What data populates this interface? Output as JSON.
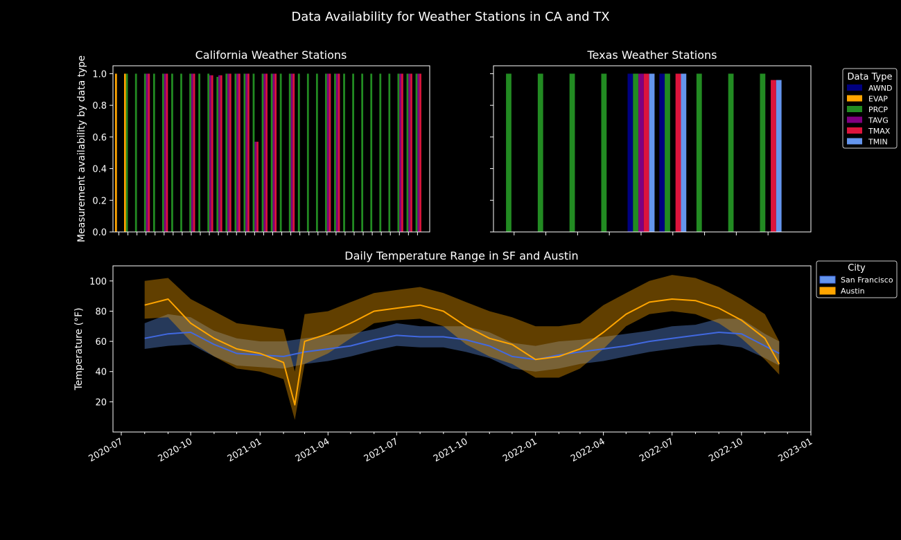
{
  "figure": {
    "title": "Data Availability for Weather Stations in CA and TX",
    "background": "#000000",
    "foreground": "#ffffff"
  },
  "chart_data": [
    {
      "type": "bar",
      "title": "California Weather Stations",
      "xlabel": "",
      "ylabel": "Measurement availability by data type",
      "ylim": [
        0,
        1.05
      ],
      "yticks": [
        "0.0",
        "0.2",
        "0.4",
        "0.6",
        "0.8",
        "1.0"
      ],
      "grid": false,
      "legend": "none",
      "station_count": 34,
      "series": [
        {
          "name": "EVAP",
          "color": "#FFA500",
          "values": [
            1.0,
            1.0,
            null,
            null,
            null,
            null,
            null,
            null,
            null,
            null,
            null,
            null,
            null,
            null,
            null,
            null,
            null,
            null,
            null,
            null,
            null,
            null,
            null,
            null,
            null,
            null,
            null,
            null,
            null,
            null,
            null,
            null,
            null,
            null
          ]
        },
        {
          "name": "PRCP",
          "color": "#228B22",
          "values": [
            null,
            1.0,
            1.0,
            1.0,
            1.0,
            1.0,
            1.0,
            1.0,
            1.0,
            1.0,
            1.0,
            0.98,
            1.0,
            1.0,
            1.0,
            1.0,
            1.0,
            1.0,
            1.0,
            1.0,
            1.0,
            1.0,
            1.0,
            1.0,
            1.0,
            1.0,
            1.0,
            1.0,
            1.0,
            1.0,
            1.0,
            1.0,
            1.0,
            1.0
          ]
        },
        {
          "name": "TAVG",
          "color": "#800080",
          "values": [
            null,
            null,
            null,
            1.0,
            null,
            1.0,
            null,
            null,
            1.0,
            null,
            0.99,
            0.99,
            1.0,
            1.0,
            1.0,
            0.57,
            1.0,
            1.0,
            null,
            1.0,
            null,
            null,
            null,
            1.0,
            1.0,
            null,
            null,
            null,
            null,
            null,
            null,
            1.0,
            1.0,
            1.0
          ]
        },
        {
          "name": "TMAX",
          "color": "#DC143C",
          "values": [
            null,
            null,
            null,
            1.0,
            null,
            1.0,
            null,
            null,
            1.0,
            null,
            0.99,
            0.99,
            1.0,
            1.0,
            1.0,
            0.57,
            1.0,
            1.0,
            null,
            1.0,
            null,
            null,
            null,
            1.0,
            1.0,
            null,
            null,
            null,
            null,
            null,
            null,
            1.0,
            1.0,
            1.0
          ]
        }
      ]
    },
    {
      "type": "bar",
      "title": "Texas Weather Stations",
      "xlabel": "",
      "ylabel": "",
      "ylim": [
        0,
        1.05
      ],
      "grid": false,
      "legend": "outside-right",
      "legend_title": "Data Type",
      "legend_entries": [
        {
          "name": "AWND",
          "color": "#000080"
        },
        {
          "name": "EVAP",
          "color": "#FFA500"
        },
        {
          "name": "PRCP",
          "color": "#228B22"
        },
        {
          "name": "TAVG",
          "color": "#800080"
        },
        {
          "name": "TMAX",
          "color": "#DC143C"
        },
        {
          "name": "TMIN",
          "color": "#6495ED"
        }
      ],
      "station_count": 9,
      "series": [
        {
          "name": "AWND",
          "color": "#000080",
          "values": [
            null,
            null,
            null,
            null,
            1.0,
            1.0,
            null,
            null,
            null
          ]
        },
        {
          "name": "PRCP",
          "color": "#228B22",
          "values": [
            1.0,
            1.0,
            1.0,
            1.0,
            1.0,
            1.0,
            1.0,
            1.0,
            1.0
          ]
        },
        {
          "name": "TAVG",
          "color": "#800080",
          "values": [
            null,
            null,
            null,
            null,
            1.0,
            null,
            null,
            null,
            null
          ]
        },
        {
          "name": "TMAX",
          "color": "#DC143C",
          "values": [
            null,
            null,
            null,
            null,
            1.0,
            1.0,
            null,
            null,
            0.96
          ]
        },
        {
          "name": "TMIN",
          "color": "#6495ED",
          "values": [
            null,
            null,
            null,
            null,
            1.0,
            1.0,
            null,
            null,
            0.96
          ]
        }
      ]
    },
    {
      "type": "line",
      "title": "Daily Temperature Range in SF and Austin",
      "xlabel": "",
      "ylabel": "Temperature (°F)",
      "ylim": [
        0,
        110
      ],
      "xlim": [
        "2020-07-01",
        "2023-01-01"
      ],
      "yticks": [
        "20",
        "40",
        "60",
        "80",
        "100"
      ],
      "xticks": [
        "2020-07",
        "2020-10",
        "2021-01",
        "2021-04",
        "2021-07",
        "2021-10",
        "2022-01",
        "2022-04",
        "2022-07",
        "2022-10",
        "2023-01"
      ],
      "grid": false,
      "legend": "outside-right",
      "legend_title": "City",
      "series": [
        {
          "name": "San Francisco",
          "color": "#4169E1",
          "fill": "#6495ED",
          "dates": [
            "2020-08-01",
            "2020-09-01",
            "2020-10-01",
            "2020-11-01",
            "2020-12-01",
            "2021-01-01",
            "2021-02-01",
            "2021-03-01",
            "2021-04-01",
            "2021-05-01",
            "2021-06-01",
            "2021-07-01",
            "2021-08-01",
            "2021-09-01",
            "2021-10-01",
            "2021-11-01",
            "2021-12-01",
            "2022-01-01",
            "2022-02-01",
            "2022-03-01",
            "2022-04-01",
            "2022-05-01",
            "2022-06-01",
            "2022-07-01",
            "2022-08-01",
            "2022-09-01",
            "2022-10-01",
            "2022-11-01",
            "2022-11-20"
          ],
          "avg": [
            62,
            65,
            66,
            58,
            52,
            51,
            50,
            53,
            55,
            57,
            61,
            64,
            63,
            63,
            61,
            57,
            50,
            48,
            51,
            53,
            55,
            57,
            60,
            62,
            64,
            66,
            65,
            57,
            52
          ],
          "low": [
            55,
            57,
            58,
            50,
            44,
            43,
            42,
            45,
            47,
            50,
            54,
            57,
            56,
            56,
            53,
            49,
            42,
            40,
            42,
            45,
            47,
            50,
            53,
            55,
            57,
            58,
            56,
            49,
            44
          ],
          "high": [
            72,
            78,
            76,
            67,
            62,
            60,
            60,
            62,
            64,
            65,
            68,
            72,
            70,
            70,
            70,
            66,
            59,
            57,
            60,
            61,
            63,
            65,
            67,
            70,
            71,
            75,
            75,
            65,
            60
          ]
        },
        {
          "name": "Austin",
          "color": "#FFA500",
          "fill": "#FFA500",
          "dates": [
            "2020-08-01",
            "2020-09-01",
            "2020-10-01",
            "2020-11-01",
            "2020-12-01",
            "2021-01-01",
            "2021-02-01",
            "2021-02-16",
            "2021-03-01",
            "2021-04-01",
            "2021-05-01",
            "2021-06-01",
            "2021-07-01",
            "2021-08-01",
            "2021-09-01",
            "2021-10-01",
            "2021-11-01",
            "2021-12-01",
            "2022-01-01",
            "2022-02-01",
            "2022-03-01",
            "2022-04-01",
            "2022-05-01",
            "2022-06-01",
            "2022-07-01",
            "2022-08-01",
            "2022-09-01",
            "2022-10-01",
            "2022-11-01",
            "2022-11-20"
          ],
          "avg": [
            84,
            88,
            72,
            62,
            55,
            52,
            46,
            18,
            60,
            65,
            72,
            80,
            82,
            84,
            80,
            70,
            62,
            58,
            48,
            50,
            55,
            66,
            78,
            86,
            88,
            87,
            82,
            74,
            62,
            45
          ],
          "low": [
            75,
            76,
            60,
            50,
            42,
            40,
            35,
            8,
            45,
            52,
            62,
            72,
            74,
            75,
            70,
            58,
            50,
            45,
            36,
            36,
            42,
            55,
            70,
            78,
            80,
            78,
            72,
            62,
            48,
            38
          ],
          "high": [
            100,
            102,
            88,
            80,
            72,
            70,
            68,
            40,
            78,
            80,
            86,
            92,
            94,
            96,
            92,
            86,
            80,
            76,
            70,
            70,
            72,
            84,
            92,
            100,
            104,
            102,
            96,
            88,
            78,
            60
          ]
        }
      ]
    }
  ]
}
